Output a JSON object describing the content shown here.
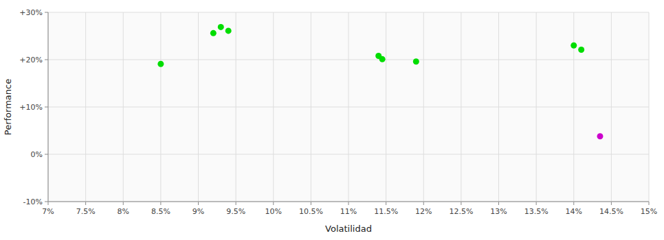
{
  "chart_data": {
    "type": "scatter",
    "xlabel": "Volatilidad",
    "ylabel": "Performance",
    "marker": "circle",
    "grid": true,
    "xlim": [
      0.07,
      0.15
    ],
    "ylim": [
      -0.1,
      0.3
    ],
    "xticks": [
      {
        "value": 0.07,
        "label": "7%"
      },
      {
        "value": 0.075,
        "label": "7.5%"
      },
      {
        "value": 0.08,
        "label": "8%"
      },
      {
        "value": 0.085,
        "label": "8.5%"
      },
      {
        "value": 0.09,
        "label": "9%"
      },
      {
        "value": 0.095,
        "label": "9.5%"
      },
      {
        "value": 0.1,
        "label": "10%"
      },
      {
        "value": 0.105,
        "label": "10.5%"
      },
      {
        "value": 0.11,
        "label": "11%"
      },
      {
        "value": 0.115,
        "label": "11.5%"
      },
      {
        "value": 0.12,
        "label": "12%"
      },
      {
        "value": 0.125,
        "label": "12.5%"
      },
      {
        "value": 0.13,
        "label": "13%"
      },
      {
        "value": 0.135,
        "label": "13.5%"
      },
      {
        "value": 0.14,
        "label": "14%"
      },
      {
        "value": 0.145,
        "label": "14.5%"
      },
      {
        "value": 0.15,
        "label": "15%"
      }
    ],
    "yticks": [
      {
        "value": -0.1,
        "label": "-10%"
      },
      {
        "value": 0.0,
        "label": "0%"
      },
      {
        "value": 0.1,
        "label": "+10%"
      },
      {
        "value": 0.2,
        "label": "+20%"
      },
      {
        "value": 0.3,
        "label": "+30%"
      }
    ],
    "series": [
      {
        "color": "#00dd00",
        "x": [
          0.085,
          0.092,
          0.093,
          0.094,
          0.114,
          0.1145,
          0.119,
          0.14,
          0.141
        ],
        "values": [
          0.191,
          0.256,
          0.269,
          0.261,
          0.208,
          0.201,
          0.196,
          0.23,
          0.221
        ]
      },
      {
        "color": "#cc00cc",
        "x": [
          0.1435
        ],
        "values": [
          0.038
        ]
      }
    ]
  }
}
